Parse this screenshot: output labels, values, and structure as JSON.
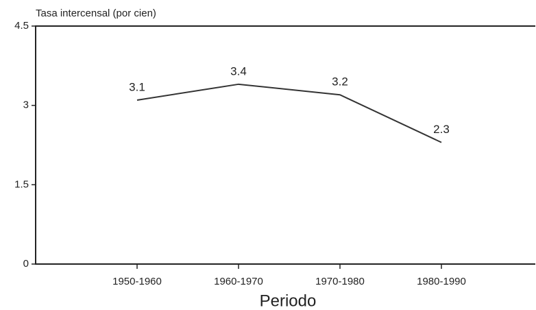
{
  "chart_data": {
    "type": "line",
    "y_axis_label": "Tasa intercensal (por cien)",
    "x_axis_label": "Periodo",
    "categories": [
      "1950-1960",
      "1960-1970",
      "1970-1980",
      "1980-1990"
    ],
    "values": [
      3.1,
      3.4,
      3.2,
      2.3
    ],
    "color": "#333333",
    "ylim": [
      0,
      4.5
    ],
    "yticks": [
      0,
      1.5,
      3,
      4.5
    ],
    "grid": false
  }
}
